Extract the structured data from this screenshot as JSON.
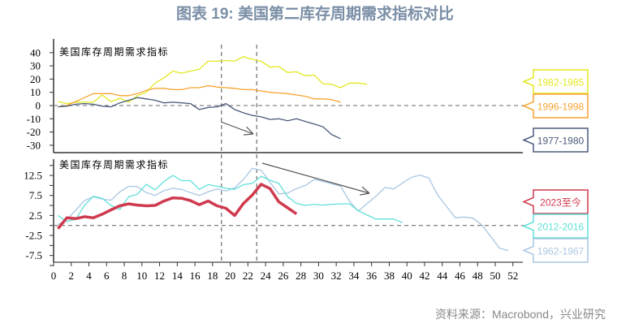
{
  "title": "图表 19: 美国第二库存周期需求指标对比",
  "source": "资料来源：Macrobond，兴业研究",
  "chart_data": [
    {
      "type": "line",
      "panel": "top",
      "label": "美国库存周期需求指标",
      "ylim": [
        -35,
        45
      ],
      "yticks": [
        40,
        30,
        20,
        10,
        0,
        -10,
        -20,
        -30
      ],
      "vlines": [
        19,
        23
      ],
      "hline": 0,
      "series": [
        {
          "name": "1982-1985",
          "color": "#e3e81e",
          "x_start": 0.5,
          "values": [
            3,
            1.5,
            2.5,
            2.5,
            2.5,
            8,
            3,
            5.5,
            2.5,
            7.5,
            10,
            17,
            21,
            26,
            24.5,
            26,
            27.5,
            33.5,
            33.5,
            34,
            33.5,
            37,
            35,
            33.5,
            29,
            29.5,
            25,
            25.5,
            22.5,
            23,
            16.5,
            16,
            13.5,
            17,
            17,
            16
          ]
        },
        {
          "name": "1996-1998",
          "color": "#f5a431",
          "x_start": 0.5,
          "values": [
            -1,
            0,
            3,
            6,
            9,
            9,
            9,
            7.5,
            7.5,
            9,
            11.5,
            13,
            13,
            12,
            12,
            13.5,
            13.5,
            15,
            14,
            13.5,
            13,
            12,
            12,
            11,
            10,
            9.5,
            9,
            8,
            7,
            5,
            5,
            4.5,
            2.5
          ]
        },
        {
          "name": "1977-1980",
          "color": "#4a5a7a",
          "x_start": 0.5,
          "values": [
            -1,
            -0.5,
            1,
            1.5,
            1,
            -0.5,
            -1,
            2,
            4,
            6,
            5,
            4,
            2,
            2.5,
            2,
            1.5,
            -3,
            -1.5,
            -1,
            1.5,
            -3,
            -5.5,
            -7.5,
            -8.5,
            -10.5,
            -10,
            -11.5,
            -10,
            -12,
            -14,
            -16,
            -22,
            -25
          ]
        }
      ]
    },
    {
      "type": "line",
      "panel": "bottom",
      "label": "美国库存周期需求指标",
      "ylim": [
        -10,
        15
      ],
      "yticks": [
        "12.5",
        "7.5",
        "2.5",
        "-2.5",
        "-7.5"
      ],
      "xlim": [
        0,
        52
      ],
      "xticks": [
        "0",
        "2",
        "4",
        "6",
        "8",
        "10",
        "12",
        "14",
        "16",
        "18",
        "20",
        "22",
        "24",
        "26",
        "28",
        "30",
        "32",
        "34",
        "36",
        "38",
        "40",
        "42",
        "44",
        "46",
        "48",
        "50",
        "52"
      ],
      "vlines": [
        19,
        23
      ],
      "hline": 0,
      "series": [
        {
          "name": "1962-1967",
          "color": "#a9c6e2",
          "x_start": 0.5,
          "values": [
            0.2,
            1.5,
            3.8,
            6.2,
            7.2,
            6.6,
            6.3,
            8.4,
            9.8,
            9.7,
            8.2,
            7.5,
            8.7,
            9.3,
            9,
            8.2,
            7.5,
            8.4,
            9.1,
            8.6,
            9.4,
            11.5,
            14.3,
            13.8,
            10.8,
            7.9,
            8.1,
            9.2,
            10,
            11.5,
            11,
            10.4,
            9.8,
            6,
            3.6,
            5.5,
            7.3,
            9.5,
            9.1,
            10.6,
            12,
            12.6,
            11.8,
            7.5,
            4.7,
            1.9,
            2.1,
            1.8,
            0.1,
            -2.8,
            -5.7,
            -6.3
          ]
        },
        {
          "name": "2012-2016",
          "color": "#5fe0d8",
          "x_start": 0.5,
          "values": [
            2.5,
            1,
            1.5,
            5,
            7.3,
            6.8,
            5,
            4,
            7.2,
            7.8,
            10.3,
            8.9,
            11,
            12.5,
            11.2,
            11.2,
            9,
            10.2,
            9.8,
            9.3,
            9,
            10.2,
            10.5,
            12.3,
            11.3,
            10.5,
            7.2,
            5.5,
            5,
            5.3,
            5.1,
            5.3,
            5.4,
            5.4,
            3.7,
            2.6,
            1.6,
            1.6,
            1.6,
            0.7
          ]
        },
        {
          "name": "2023至今",
          "color": "#cf3a4e",
          "x_start": 0.5,
          "values": [
            -0.8,
            1.9,
            1.7,
            2.2,
            1.9,
            2.8,
            3.9,
            4.9,
            5.4,
            5.1,
            4.9,
            5,
            6.1,
            6.9,
            6.8,
            6.2,
            5.2,
            6.1,
            4.9,
            4.3,
            2.5,
            5.5,
            7.6,
            10.3,
            9.2,
            5.9,
            4.4,
            2.9
          ]
        }
      ]
    }
  ]
}
